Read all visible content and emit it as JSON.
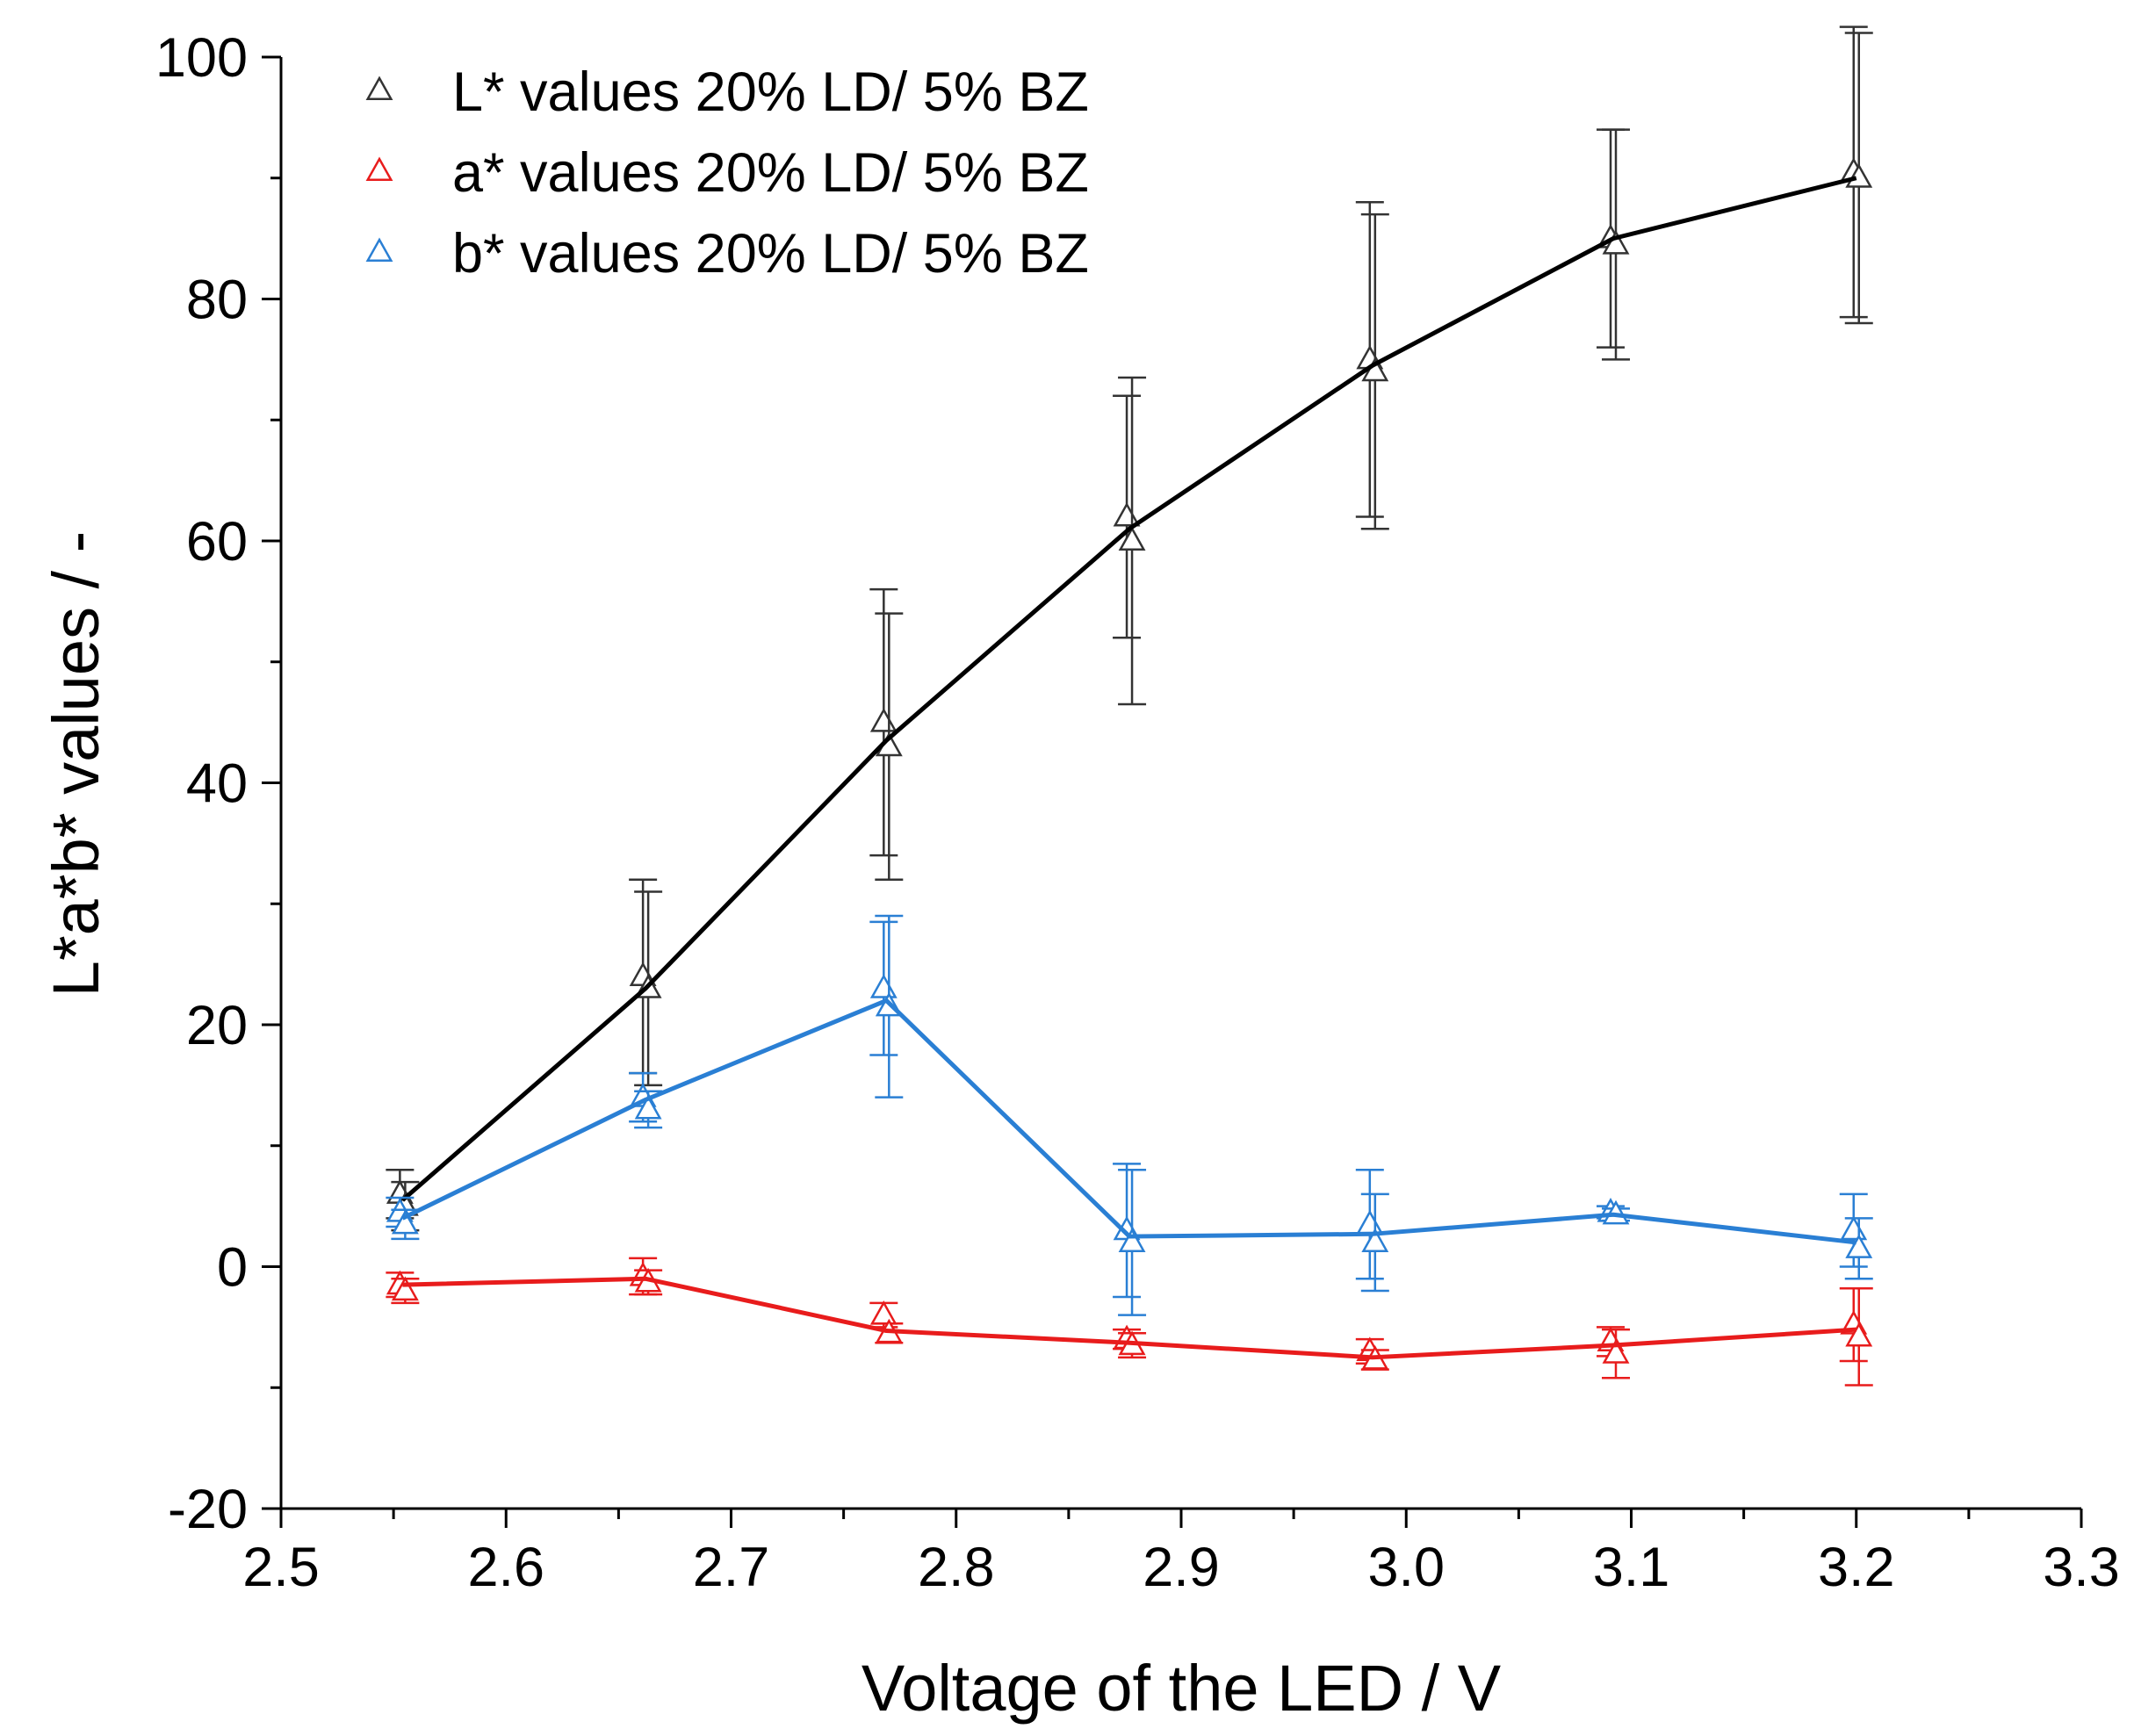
{
  "chart_data": {
    "type": "line",
    "xlabel": "Voltage of the LED / V",
    "ylabel": "L*a*b* values / -",
    "xlim": [
      2.5,
      3.3
    ],
    "ylim": [
      -20,
      100
    ],
    "x_ticks": [
      2.5,
      2.6,
      2.7,
      2.8,
      2.9,
      3.0,
      3.1,
      3.2,
      3.3
    ],
    "x_tick_labels": [
      "2.5",
      "2.6",
      "2.7",
      "2.8",
      "2.9",
      "3.0",
      "3.1",
      "3.2",
      "3.3"
    ],
    "y_ticks": [
      -20,
      0,
      20,
      40,
      60,
      80,
      100
    ],
    "y_tick_labels": [
      "-20",
      "0",
      "20",
      "40",
      "60",
      "80",
      "100"
    ],
    "legend_position": "top-left",
    "grid": false,
    "series": [
      {
        "name": "L* values 20% LD/ 5% BZ",
        "color": "#000000",
        "marker_color": "#333333",
        "x": [
          2.554,
          2.662,
          2.769,
          2.877,
          2.985,
          3.092,
          3.2
        ],
        "y": [
          5.5,
          23,
          43.5,
          61,
          74.5,
          85,
          90
        ],
        "points": [
          {
            "x": 2.554,
            "values": [
              6,
              5
            ],
            "errors": [
              2,
              2
            ]
          },
          {
            "x": 2.662,
            "values": [
              24,
              23
            ],
            "errors": [
              8,
              8
            ]
          },
          {
            "x": 2.769,
            "values": [
              45,
              43
            ],
            "errors": [
              11,
              11
            ]
          },
          {
            "x": 2.877,
            "values": [
              62,
              60
            ],
            "errors": [
              10,
              13.5
            ]
          },
          {
            "x": 2.985,
            "values": [
              75,
              74
            ],
            "errors": [
              13,
              13
            ]
          },
          {
            "x": 3.092,
            "values": [
              85,
              84.5
            ],
            "errors": [
              9,
              9.5
            ]
          },
          {
            "x": 3.2,
            "values": [
              90.5,
              90
            ],
            "errors": [
              12,
              12
            ]
          }
        ]
      },
      {
        "name": "a* values 20% LD/ 5% BZ",
        "color": "#e81c1c",
        "marker_color": "#e81c1c",
        "x": [
          2.554,
          2.662,
          2.769,
          2.877,
          2.985,
          3.092,
          3.2
        ],
        "y": [
          -1.5,
          -1,
          -5.3,
          -6.3,
          -7.5,
          -6.5,
          -5.2
        ],
        "points": [
          {
            "x": 2.554,
            "values": [
              -1.5,
              -2
            ],
            "errors": [
              1,
              1
            ]
          },
          {
            "x": 2.662,
            "values": [
              -0.8,
              -1.3
            ],
            "errors": [
              1.5,
              1
            ]
          },
          {
            "x": 2.769,
            "values": [
              -4,
              -5.5
            ],
            "errors": [
              1,
              0.8
            ]
          },
          {
            "x": 2.877,
            "values": [
              -6,
              -6.5
            ],
            "errors": [
              0.8,
              1
            ]
          },
          {
            "x": 2.985,
            "values": [
              -7,
              -7.7
            ],
            "errors": [
              1,
              0.8
            ]
          },
          {
            "x": 3.092,
            "values": [
              -6.2,
              -7.2
            ],
            "errors": [
              1.2,
              2
            ]
          },
          {
            "x": 3.2,
            "values": [
              -4.8,
              -5.8
            ],
            "errors": [
              3,
              4
            ]
          }
        ]
      },
      {
        "name": "b* values 20% LD/ 5% BZ",
        "color": "#2a7fd4",
        "marker_color": "#2a7fd4",
        "x": [
          2.554,
          2.662,
          2.769,
          2.877,
          2.985,
          3.092,
          3.2
        ],
        "y": [
          4,
          13.8,
          22,
          2.5,
          2.7,
          4.3,
          2
        ],
        "points": [
          {
            "x": 2.554,
            "values": [
              4.5,
              3.5
            ],
            "errors": [
              1.2,
              1.2
            ]
          },
          {
            "x": 2.662,
            "values": [
              14,
              13
            ],
            "errors": [
              2,
              1.5
            ]
          },
          {
            "x": 2.769,
            "values": [
              23,
              21.5
            ],
            "errors": [
              5.5,
              7.5
            ]
          },
          {
            "x": 2.877,
            "values": [
              3,
              2
            ],
            "errors": [
              5.5,
              6
            ]
          },
          {
            "x": 2.985,
            "values": [
              3.5,
              2
            ],
            "errors": [
              4.5,
              4
            ]
          },
          {
            "x": 3.092,
            "values": [
              4.5,
              4.3
            ],
            "errors": [
              0.5,
              0.5
            ]
          },
          {
            "x": 3.2,
            "values": [
              3,
              1.5
            ],
            "errors": [
              3,
              2.5
            ]
          }
        ]
      }
    ]
  }
}
